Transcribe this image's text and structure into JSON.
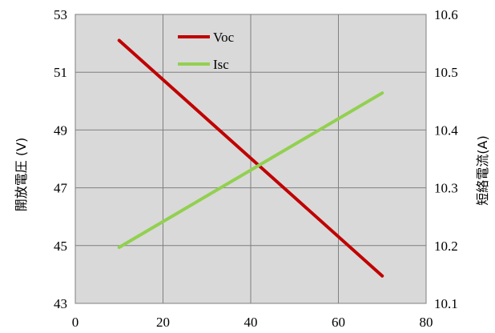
{
  "chart_data": {
    "type": "line",
    "title": "",
    "xlabel": "",
    "y_left_label": "開放電圧 (V)",
    "y_right_label": "短絡電流(A)",
    "xlim": [
      0,
      80
    ],
    "y_left_lim": [
      43,
      53
    ],
    "y_right_lim": [
      10.1,
      10.6
    ],
    "x_ticks": [
      "0",
      "20",
      "40",
      "60",
      "80"
    ],
    "y_left_ticks": [
      "43",
      "45",
      "47",
      "49",
      "51",
      "53"
    ],
    "y_right_ticks": [
      "10.1",
      "10.2",
      "10.3",
      "10.4",
      "10.5",
      "10.6"
    ],
    "grid": true,
    "legend_position": "top-center",
    "series": [
      {
        "name": "Voc",
        "axis": "left",
        "color": "#c00000",
        "x": [
          10,
          70
        ],
        "values": [
          52.1,
          43.95
        ]
      },
      {
        "name": "Isc",
        "axis": "right",
        "color": "#92d050",
        "x": [
          10,
          70
        ],
        "values": [
          10.197,
          10.464
        ]
      }
    ]
  }
}
